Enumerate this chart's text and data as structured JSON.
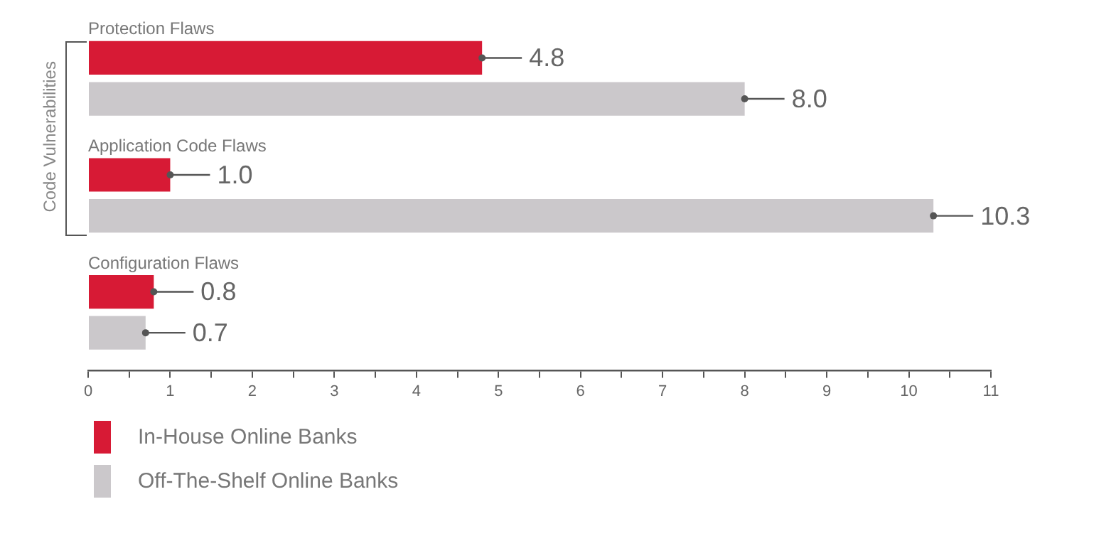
{
  "chart_data": {
    "type": "bar",
    "orientation": "horizontal",
    "categories": [
      "Protection Flaws",
      "Application Code Flaws",
      "Configuration Flaws"
    ],
    "series": [
      {
        "name": "In-House Online Banks",
        "color": "#d71a35",
        "values": [
          4.8,
          1.0,
          0.8
        ],
        "value_labels": [
          "4.8",
          "1.0",
          "0.8"
        ]
      },
      {
        "name": "Off-The-Shelf Online Banks",
        "color": "#cbc8cb",
        "values": [
          8.0,
          10.3,
          0.7
        ],
        "value_labels": [
          "8.0",
          "10.3",
          "0.7"
        ]
      }
    ],
    "xlim": [
      0,
      11
    ],
    "xticks": [
      0,
      {
        "value": 0.5,
        "label": null
      },
      1,
      {
        "value": 1.5,
        "label": null
      },
      2,
      {
        "value": 2.5,
        "label": null
      },
      3,
      {
        "value": 3.5,
        "label": null
      },
      4,
      {
        "value": 4.5,
        "label": null
      },
      5,
      {
        "value": 5.5,
        "label": null
      },
      6,
      {
        "value": 6.5,
        "label": null
      },
      7,
      {
        "value": 7.5,
        "label": null
      },
      8,
      {
        "value": 8.5,
        "label": null
      },
      9,
      {
        "value": 9.5,
        "label": null
      },
      10,
      {
        "value": 10.5,
        "label": null
      },
      11
    ],
    "annotations": [
      "Code Vulnerabilities"
    ],
    "grid": false,
    "legend": "bottom left"
  }
}
